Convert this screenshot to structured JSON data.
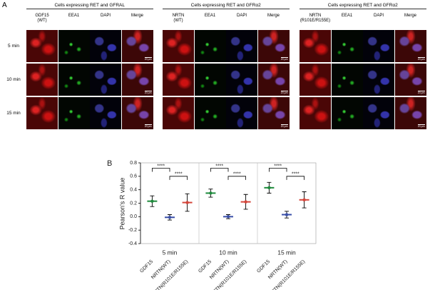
{
  "panel_a": {
    "label": "A",
    "groups": [
      {
        "title": "Cells expressing RET and GFRAL",
        "columns": [
          "GDF15\n(WT)",
          "EEA1",
          "DAPI",
          "Merge"
        ]
      },
      {
        "title": "Cells expressing RET and GFRα2",
        "columns": [
          "NRTN\n(WT)",
          "EEA1",
          "DAPI",
          "Merge"
        ]
      },
      {
        "title": "Cells expressing RET and GFRα2",
        "columns": [
          "NRTN\n(R101E/R155E)",
          "EEA1",
          "DAPI",
          "Merge"
        ]
      }
    ],
    "rows": [
      "5 min",
      "10 min",
      "15 min"
    ],
    "scale_bar": "20 µm"
  },
  "chart_data": {
    "type": "dotplot",
    "label": "B",
    "ylabel": "Pearson's R value",
    "groups": [
      "5 min",
      "10 min",
      "15 min"
    ],
    "categories": [
      "GDF15",
      "NRTN(WT)",
      "NRTN(R101E/R155E)"
    ],
    "series": [
      {
        "color": "#1e8a3c",
        "values": [
          0.23,
          0.35,
          0.43
        ],
        "errors": [
          0.08,
          0.06,
          0.08
        ]
      },
      {
        "color": "#3a4fa8",
        "values": [
          -0.01,
          0.0,
          0.03
        ],
        "errors": [
          0.04,
          0.03,
          0.05
        ]
      },
      {
        "color": "#d4453a",
        "values": [
          0.21,
          0.22,
          0.25
        ],
        "errors": [
          0.13,
          0.11,
          0.12
        ]
      }
    ],
    "significance_labels": [
      "****",
      "****",
      "****",
      "****",
      "****",
      "****"
    ],
    "ylim": [
      -0.4,
      0.8
    ],
    "yticks": [
      -0.4,
      -0.2,
      {
        "value": 0,
        "label": "0.0"
      },
      0.2,
      0.4,
      0.6,
      0.8
    ]
  }
}
